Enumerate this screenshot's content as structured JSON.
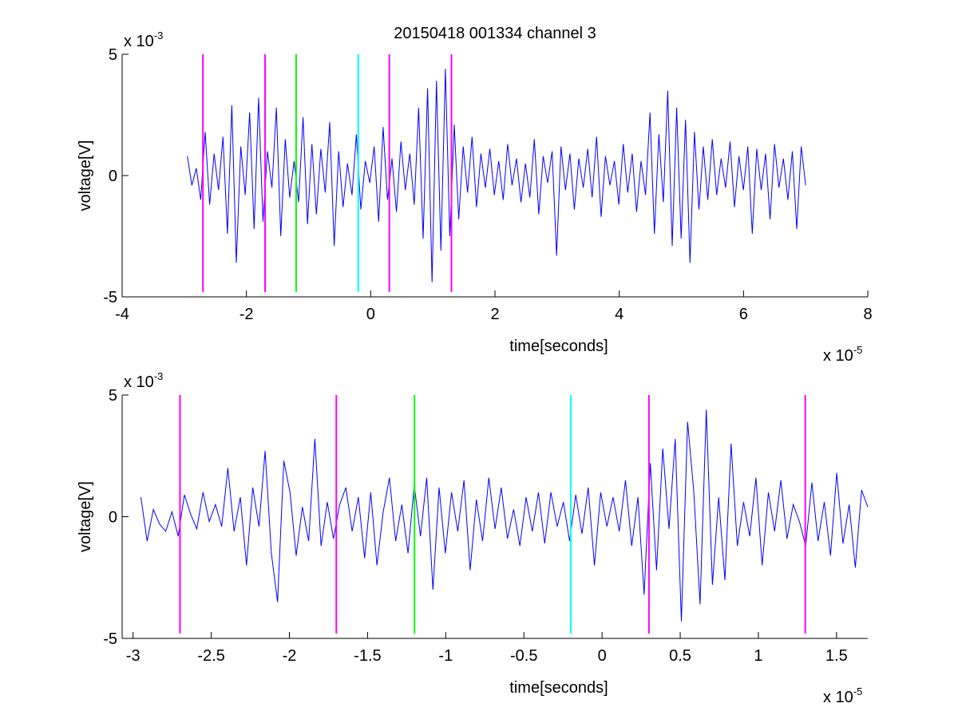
{
  "figure": {
    "title": "20150418 001334 channel 3",
    "background": "#ffffff",
    "trace_color": "#0000ff",
    "marker_colors": {
      "magenta": "#ff00ff",
      "green": "#00ff00",
      "cyan": "#00ffff"
    }
  },
  "chart_data": [
    {
      "type": "line",
      "title": "20150418 001334 channel 3",
      "xlabel": "time[seconds]",
      "ylabel": "voltage[V]",
      "x_exponent_label": "x 10",
      "x_exponent": "-5",
      "y_exponent_label": "x 10",
      "y_exponent": "-3",
      "xlim": [
        -4,
        8
      ],
      "ylim": [
        -5,
        5
      ],
      "xticks": [
        -4,
        -2,
        0,
        2,
        4,
        6,
        8
      ],
      "xtick_labels": [
        "-4",
        "-2",
        "0",
        "2",
        "4",
        "6",
        "8"
      ],
      "yticks": [
        -5,
        0,
        5
      ],
      "ytick_labels": [
        "-5",
        "0",
        "5"
      ],
      "grid": false,
      "series": [
        {
          "color": "#0000ff",
          "x_start": -2.95,
          "x_end": 7.0,
          "values": [
            0.8,
            -0.4,
            0.3,
            -1.0,
            1.8,
            -1.2,
            0.9,
            -0.6,
            1.6,
            -2.4,
            2.9,
            -3.6,
            1.2,
            -0.8,
            2.6,
            -2.2,
            3.2,
            -1.9,
            1.0,
            -0.5,
            2.8,
            -2.5,
            1.5,
            -0.9,
            0.6,
            -1.1,
            2.4,
            -2.0,
            1.3,
            -1.6,
            1.1,
            -0.7,
            2.2,
            -2.9,
            1.0,
            -1.3,
            0.5,
            -0.8,
            1.7,
            -1.4,
            0.6,
            -0.3,
            1.2,
            -1.9,
            2.0,
            -1.0,
            0.7,
            -1.5,
            1.4,
            -0.6,
            0.9,
            -1.2,
            2.8,
            -2.6,
            3.6,
            -4.4,
            3.9,
            -3.1,
            4.4,
            -2.5,
            2.1,
            -1.8,
            1.2,
            -0.7,
            1.6,
            -1.3,
            0.9,
            -0.5,
            1.1,
            -0.8,
            0.6,
            -1.0,
            1.3,
            -0.4,
            0.7,
            -1.1,
            0.5,
            -0.9,
            1.5,
            -1.6,
            0.8,
            -0.3,
            1.0,
            -3.3,
            1.2,
            -0.6,
            0.9,
            -1.4,
            0.7,
            -0.5,
            1.1,
            -0.9,
            1.6,
            -1.7,
            0.8,
            -0.4,
            0.6,
            -1.2,
            1.3,
            -0.7,
            0.9,
            -1.5,
            0.6,
            -0.8,
            2.6,
            -2.4,
            1.7,
            -1.1,
            3.5,
            -2.9,
            2.8,
            -2.6,
            2.3,
            -3.6,
            1.8,
            -1.4,
            1.2,
            -1.0,
            1.5,
            -0.8,
            0.7,
            -0.5,
            1.4,
            -1.3,
            0.8,
            -0.6,
            1.2,
            -2.4,
            1.1,
            -0.6,
            0.9,
            -1.8,
            1.3,
            -0.5,
            0.7,
            -1.0,
            1.0,
            -2.2,
            1.2,
            -0.4
          ]
        }
      ],
      "vlines": [
        {
          "x": -2.7,
          "color": "#ff00ff"
        },
        {
          "x": -1.7,
          "color": "#ff00ff"
        },
        {
          "x": -1.2,
          "color": "#00ff00"
        },
        {
          "x": -0.2,
          "color": "#00ffff"
        },
        {
          "x": 0.3,
          "color": "#ff00ff"
        },
        {
          "x": 1.3,
          "color": "#ff00ff"
        }
      ],
      "vline_range": [
        -4.8,
        5.0
      ]
    },
    {
      "type": "line",
      "title": "",
      "xlabel": "time[seconds]",
      "ylabel": "voltage[V]",
      "x_exponent_label": "x 10",
      "x_exponent": "-5",
      "y_exponent_label": "x 10",
      "y_exponent": "-3",
      "xlim": [
        -3.07,
        1.7
      ],
      "ylim": [
        -5,
        5
      ],
      "xticks": [
        -3,
        -2.5,
        -2,
        -1.5,
        -1,
        -0.5,
        0,
        0.5,
        1,
        1.5
      ],
      "xtick_labels": [
        "-3",
        "-2.5",
        "-2",
        "-1.5",
        "-1",
        "-0.5",
        "0",
        "0.5",
        "1",
        "1.5"
      ],
      "yticks": [
        -5,
        0,
        5
      ],
      "ytick_labels": [
        "-5",
        "0",
        "5"
      ],
      "grid": false,
      "series": [
        {
          "color": "#0000ff",
          "x_start": -2.95,
          "x_end": 1.7,
          "values": [
            0.8,
            -1.0,
            0.3,
            -0.3,
            -0.6,
            0.2,
            -0.8,
            0.9,
            0.1,
            -0.5,
            1.0,
            -0.2,
            0.5,
            -0.4,
            2.0,
            -0.6,
            0.8,
            -2.0,
            1.2,
            -0.4,
            2.7,
            -1.5,
            -3.5,
            2.3,
            1.0,
            -1.6,
            0.4,
            -1.0,
            3.2,
            -1.2,
            0.6,
            -0.9,
            0.5,
            1.2,
            -0.6,
            0.8,
            -1.7,
            1.0,
            -2.0,
            0.2,
            1.6,
            -1.0,
            0.5,
            -1.5,
            1.3,
            -0.8,
            1.6,
            -3.0,
            1.2,
            -1.5,
            1.0,
            -0.6,
            1.5,
            -2.2,
            0.7,
            -1.0,
            1.6,
            -0.5,
            1.2,
            -0.9,
            0.3,
            -1.2,
            0.8,
            -0.6,
            1.0,
            -1.1,
            1.0,
            -0.4,
            0.6,
            -1.0,
            0.9,
            -0.7,
            1.2,
            -2.0,
            1.0,
            -0.4,
            0.8,
            -0.6,
            1.5,
            -1.2,
            0.8,
            -3.2,
            2.2,
            -2.2,
            2.8,
            -0.5,
            3.2,
            -4.3,
            3.9,
            1.0,
            -3.6,
            4.4,
            -2.8,
            0.8,
            -2.6,
            3.0,
            -1.2,
            0.6,
            -0.8,
            1.6,
            -2.0,
            1.0,
            -0.6,
            1.5,
            -0.9,
            0.5,
            -0.2,
            -1.2,
            1.4,
            -1.0,
            0.6,
            -1.6,
            1.8,
            -1.1,
            0.5,
            -2.1,
            1.1,
            0.4
          ]
        }
      ],
      "vlines": [
        {
          "x": -2.7,
          "color": "#ff00ff"
        },
        {
          "x": -1.7,
          "color": "#ff00ff"
        },
        {
          "x": -1.2,
          "color": "#00ff00"
        },
        {
          "x": -0.2,
          "color": "#00ffff"
        },
        {
          "x": 0.3,
          "color": "#ff00ff"
        },
        {
          "x": 1.3,
          "color": "#ff00ff"
        }
      ],
      "vline_range": [
        -4.8,
        5.0
      ]
    }
  ]
}
